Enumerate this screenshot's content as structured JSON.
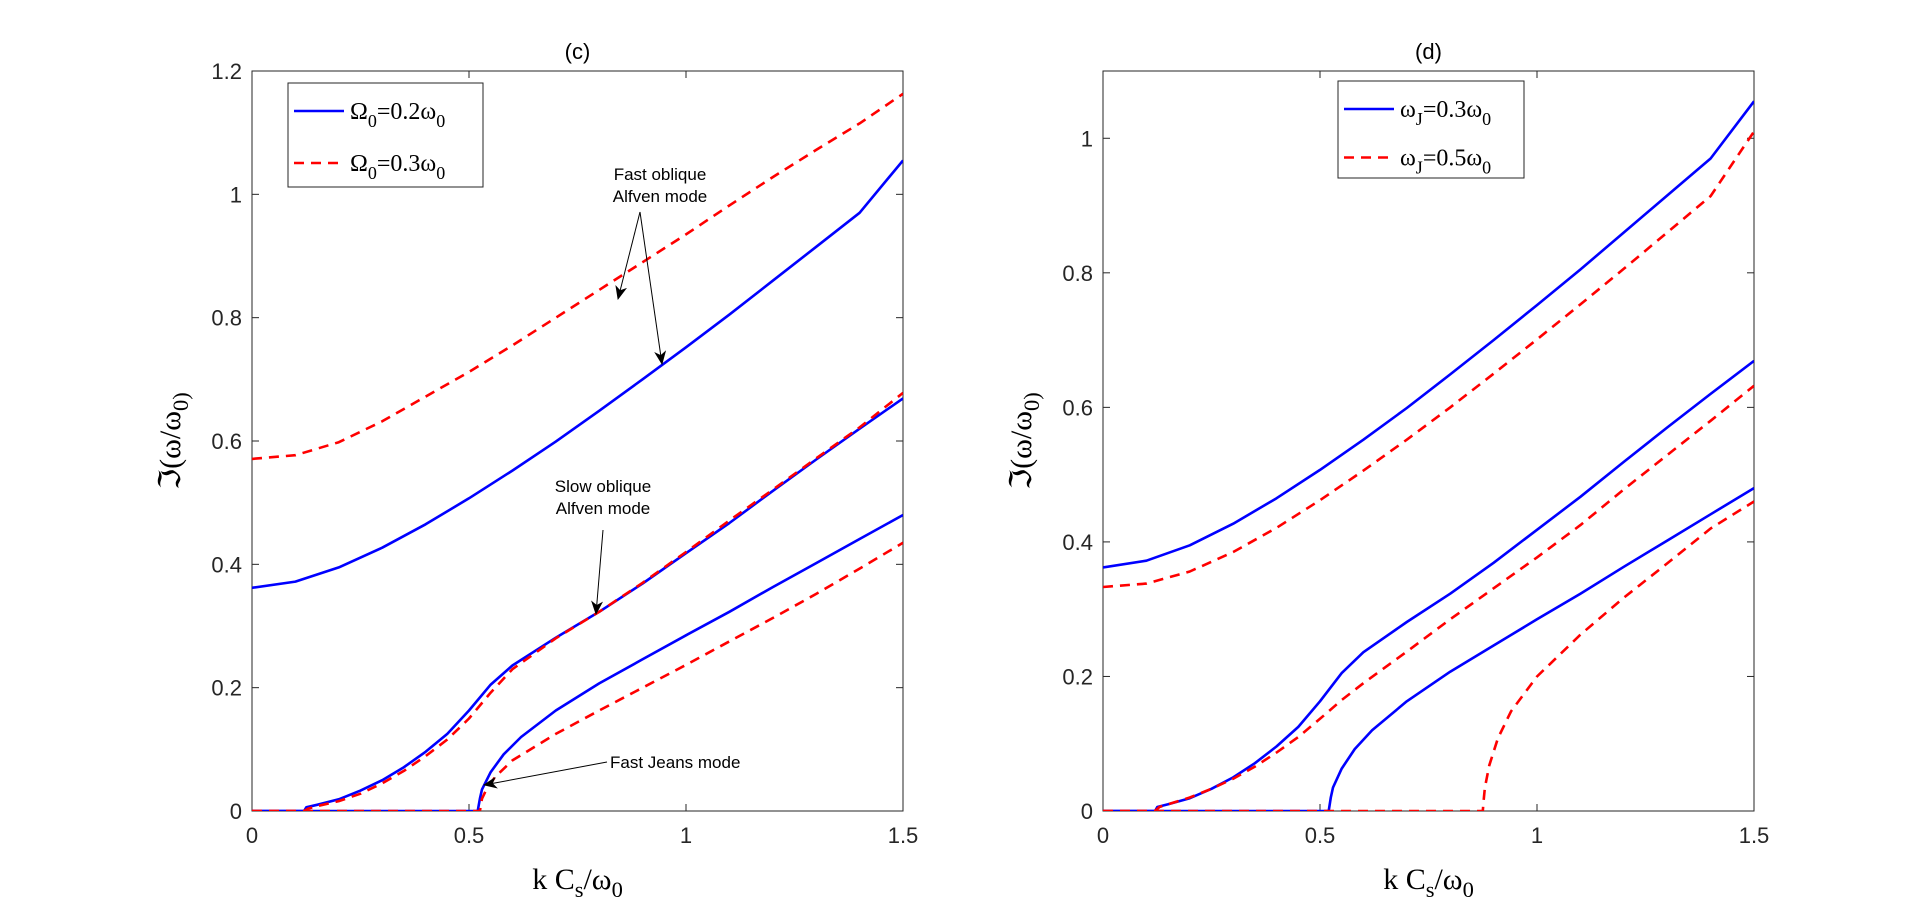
{
  "chart_data": [
    {
      "type": "line",
      "title": "(c)",
      "xlabel": "k C_s/ω_0",
      "ylabel": "ℑ(ω/ω_0)",
      "xlim": [
        0,
        1.5
      ],
      "ylim": [
        0,
        1.2
      ],
      "xticks": [
        0,
        0.5,
        1,
        1.5
      ],
      "xtick_labels": [
        "0",
        "0.5",
        "1",
        "1.5"
      ],
      "yticks": [
        0,
        0.2,
        0.4,
        0.6,
        0.8,
        1,
        1.2
      ],
      "ytick_labels": [
        "0",
        "0.2",
        "0.4",
        "0.6",
        "0.8",
        "1",
        "1.2"
      ],
      "legend_position": "top-left",
      "legend": [
        {
          "label": "Ω_0=0.2ω_0",
          "color": "#0000ff",
          "style": "solid"
        },
        {
          "label": "Ω_0=0.3ω_0",
          "color": "#ff0000",
          "style": "dashed"
        }
      ],
      "series": [
        {
          "name": "Ω_0=0.2ω_0 fast oblique Alfven",
          "legend": 0,
          "x": [
            0,
            0.1,
            0.2,
            0.3,
            0.4,
            0.5,
            0.6,
            0.7,
            0.8,
            0.9,
            1.0,
            1.1,
            1.2,
            1.3,
            1.4,
            1.5
          ],
          "values": [
            0.362,
            0.372,
            0.395,
            0.427,
            0.465,
            0.507,
            0.552,
            0.599,
            0.649,
            0.7,
            0.752,
            0.805,
            0.86,
            0.915,
            0.97,
            1.055
          ]
        },
        {
          "name": "Ω_0=0.2ω_0 slow oblique Alfven",
          "legend": 0,
          "x": [
            0,
            0.12,
            0.125,
            0.15,
            0.2,
            0.25,
            0.3,
            0.35,
            0.4,
            0.45,
            0.5,
            0.55,
            0.6,
            0.7,
            0.8,
            0.9,
            1.0,
            1.1,
            1.2,
            1.3,
            1.4,
            1.5
          ],
          "values": [
            0,
            0,
            0.006,
            0.01,
            0.019,
            0.033,
            0.05,
            0.071,
            0.096,
            0.125,
            0.163,
            0.205,
            0.236,
            0.281,
            0.323,
            0.369,
            0.418,
            0.467,
            0.519,
            0.57,
            0.62,
            0.669
          ]
        },
        {
          "name": "Ω_0=0.2ω_0 fast Jeans",
          "legend": 0,
          "x": [
            0,
            0.52,
            0.525,
            0.53,
            0.55,
            0.58,
            0.62,
            0.7,
            0.8,
            0.9,
            1.0,
            1.1,
            1.2,
            1.3,
            1.4,
            1.5
          ],
          "values": [
            0,
            0,
            0.02,
            0.035,
            0.063,
            0.092,
            0.12,
            0.163,
            0.207,
            0.246,
            0.285,
            0.323,
            0.363,
            0.402,
            0.441,
            0.48
          ]
        },
        {
          "name": "Ω_0=0.3ω_0 fast oblique Alfven",
          "legend": 1,
          "x": [
            0,
            0.1,
            0.2,
            0.3,
            0.4,
            0.5,
            0.6,
            0.7,
            0.8,
            0.9,
            1.0,
            1.1,
            1.2,
            1.3,
            1.4,
            1.5
          ],
          "values": [
            0.571,
            0.577,
            0.598,
            0.632,
            0.672,
            0.712,
            0.755,
            0.8,
            0.845,
            0.89,
            0.935,
            0.982,
            1.028,
            1.072,
            1.115,
            1.163
          ]
        },
        {
          "name": "Ω_0=0.3ω_0 slow oblique Alfven",
          "legend": 1,
          "x": [
            0,
            0.12,
            0.13,
            0.15,
            0.2,
            0.25,
            0.3,
            0.35,
            0.4,
            0.45,
            0.5,
            0.55,
            0.6,
            0.7,
            0.8,
            0.9,
            1.0,
            1.1,
            1.2,
            1.3,
            1.4,
            1.5
          ],
          "values": [
            0,
            0,
            0.004,
            0.008,
            0.016,
            0.028,
            0.045,
            0.065,
            0.089,
            0.116,
            0.15,
            0.192,
            0.23,
            0.28,
            0.323,
            0.37,
            0.42,
            0.471,
            0.521,
            0.572,
            0.622,
            0.678
          ]
        },
        {
          "name": "Ω_0=0.3ω_0 fast Jeans",
          "legend": 1,
          "x": [
            0,
            0.525,
            0.53,
            0.54,
            0.56,
            0.6,
            0.7,
            0.8,
            0.9,
            1.0,
            1.1,
            1.2,
            1.3,
            1.4,
            1.5
          ],
          "values": [
            0,
            0,
            0.02,
            0.035,
            0.055,
            0.082,
            0.125,
            0.163,
            0.2,
            0.237,
            0.275,
            0.313,
            0.352,
            0.393,
            0.435
          ]
        }
      ],
      "annotations": [
        {
          "lines": [
            "Fast oblique",
            "Alfven mode"
          ]
        },
        {
          "lines": [
            "Slow oblique",
            "Alfven mode"
          ]
        },
        {
          "lines": [
            "Fast Jeans mode"
          ]
        }
      ]
    },
    {
      "type": "line",
      "title": "(d)",
      "xlabel": "k C_s/ω_0",
      "ylabel": "ℑ(ω/ω_0)",
      "xlim": [
        0,
        1.5
      ],
      "ylim": [
        0,
        1.1
      ],
      "xticks": [
        0,
        0.5,
        1,
        1.5
      ],
      "xtick_labels": [
        "0",
        "0.5",
        "1",
        "1.5"
      ],
      "yticks": [
        0,
        0.2,
        0.4,
        0.6,
        0.8,
        1
      ],
      "ytick_labels": [
        "0",
        "0.2",
        "0.4",
        "0.6",
        "0.8",
        "1"
      ],
      "legend_position": "top-center",
      "legend": [
        {
          "label": "ω_J=0.3ω_0",
          "color": "#0000ff",
          "style": "solid"
        },
        {
          "label": "ω_J=0.5ω_0",
          "color": "#ff0000",
          "style": "dashed"
        }
      ],
      "series": [
        {
          "name": "ω_J=0.3ω_0 upper",
          "legend": 0,
          "x": [
            0,
            0.1,
            0.2,
            0.3,
            0.4,
            0.5,
            0.6,
            0.7,
            0.8,
            0.9,
            1.0,
            1.1,
            1.2,
            1.3,
            1.4,
            1.5
          ],
          "values": [
            0.362,
            0.372,
            0.395,
            0.427,
            0.465,
            0.507,
            0.552,
            0.599,
            0.649,
            0.7,
            0.752,
            0.805,
            0.86,
            0.915,
            0.97,
            1.055
          ]
        },
        {
          "name": "ω_J=0.3ω_0 middle",
          "legend": 0,
          "x": [
            0,
            0.12,
            0.125,
            0.15,
            0.2,
            0.25,
            0.3,
            0.35,
            0.4,
            0.45,
            0.5,
            0.55,
            0.6,
            0.7,
            0.8,
            0.9,
            1.0,
            1.1,
            1.2,
            1.3,
            1.4,
            1.5
          ],
          "values": [
            0,
            0,
            0.006,
            0.01,
            0.019,
            0.033,
            0.05,
            0.071,
            0.096,
            0.125,
            0.163,
            0.205,
            0.236,
            0.281,
            0.323,
            0.369,
            0.418,
            0.467,
            0.519,
            0.57,
            0.62,
            0.669
          ]
        },
        {
          "name": "ω_J=0.3ω_0 lower",
          "legend": 0,
          "x": [
            0,
            0.52,
            0.525,
            0.53,
            0.55,
            0.58,
            0.62,
            0.7,
            0.8,
            0.9,
            1.0,
            1.1,
            1.2,
            1.3,
            1.4,
            1.5
          ],
          "values": [
            0,
            0,
            0.02,
            0.035,
            0.063,
            0.092,
            0.12,
            0.163,
            0.207,
            0.246,
            0.285,
            0.323,
            0.363,
            0.402,
            0.441,
            0.48
          ]
        },
        {
          "name": "ω_J=0.5ω_0 upper",
          "legend": 1,
          "x": [
            0,
            0.1,
            0.2,
            0.3,
            0.4,
            0.5,
            0.6,
            0.7,
            0.8,
            0.9,
            1.0,
            1.1,
            1.2,
            1.3,
            1.4,
            1.5
          ],
          "values": [
            0.333,
            0.338,
            0.356,
            0.385,
            0.421,
            0.462,
            0.506,
            0.552,
            0.6,
            0.65,
            0.701,
            0.753,
            0.806,
            0.86,
            0.914,
            1.01
          ]
        },
        {
          "name": "ω_J=0.5ω_0 middle",
          "legend": 1,
          "x": [
            0,
            0.12,
            0.13,
            0.15,
            0.2,
            0.25,
            0.3,
            0.35,
            0.4,
            0.45,
            0.5,
            0.55,
            0.6,
            0.7,
            0.8,
            0.9,
            1.0,
            1.1,
            1.2,
            1.3,
            1.4,
            1.5
          ],
          "values": [
            0,
            0,
            0.006,
            0.01,
            0.02,
            0.033,
            0.048,
            0.066,
            0.087,
            0.11,
            0.137,
            0.165,
            0.19,
            0.237,
            0.285,
            0.331,
            0.377,
            0.425,
            0.478,
            0.529,
            0.58,
            0.632
          ]
        },
        {
          "name": "ω_J=0.5ω_0 lower",
          "legend": 1,
          "x": [
            0,
            0.875,
            0.877,
            0.88,
            0.89,
            0.91,
            0.94,
            1.0,
            1.1,
            1.2,
            1.3,
            1.4,
            1.5
          ],
          "values": [
            0,
            0,
            0.015,
            0.035,
            0.068,
            0.108,
            0.148,
            0.2,
            0.262,
            0.317,
            0.368,
            0.42,
            0.46
          ]
        }
      ],
      "annotations": []
    }
  ]
}
